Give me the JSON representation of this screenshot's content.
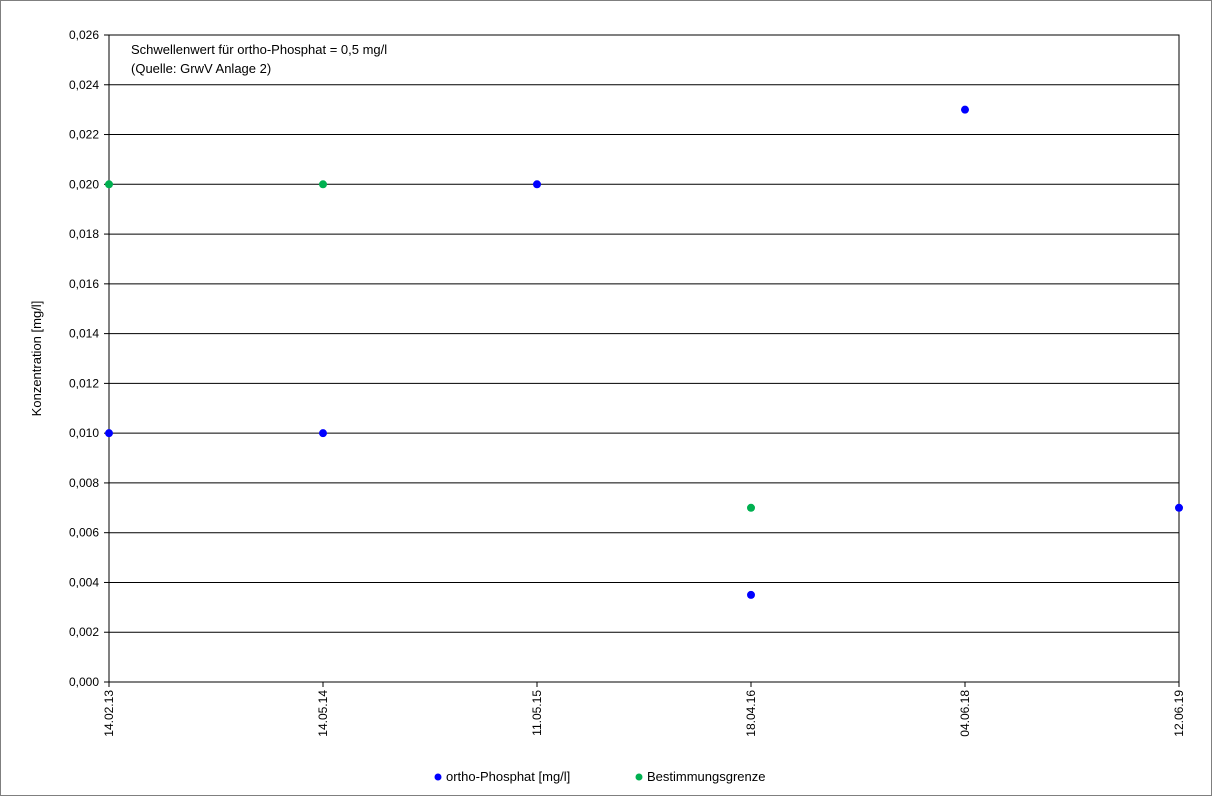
{
  "chart_data": {
    "type": "scatter",
    "title": "",
    "xlabel": "",
    "ylabel": "Konzentration [mg/l]",
    "ylim": [
      0,
      0.026
    ],
    "y_ticks": [
      "0,000",
      "0,002",
      "0,004",
      "0,006",
      "0,008",
      "0,010",
      "0,012",
      "0,014",
      "0,016",
      "0,018",
      "0,020",
      "0,022",
      "0,024",
      "0,026"
    ],
    "y_tick_values": [
      0,
      0.002,
      0.004,
      0.006,
      0.008,
      0.01,
      0.012,
      0.014,
      0.016,
      0.018,
      0.02,
      0.022,
      0.024,
      0.026
    ],
    "categories": [
      "14.02.13",
      "14.05.14",
      "11.05.15",
      "18.04.16",
      "04.06.18",
      "12.06.19"
    ],
    "grid": true,
    "legend_position": "bottom",
    "annotation": [
      "Schwellenwert für ortho-Phosphat = 0,5 mg/l",
      "(Quelle: GrwV Anlage 2)"
    ],
    "series": [
      {
        "name": "ortho-Phosphat [mg/l]",
        "color": "#0000ff",
        "points": [
          {
            "x": "14.02.13",
            "y": 0.01
          },
          {
            "x": "14.05.14",
            "y": 0.01
          },
          {
            "x": "11.05.15",
            "y": 0.02
          },
          {
            "x": "18.04.16",
            "y": 0.0035
          },
          {
            "x": "04.06.18",
            "y": 0.023
          },
          {
            "x": "12.06.19",
            "y": 0.007
          }
        ]
      },
      {
        "name": "Bestimmungsgrenze",
        "color": "#00b050",
        "points": [
          {
            "x": "14.02.13",
            "y": 0.02
          },
          {
            "x": "14.05.14",
            "y": 0.02
          },
          {
            "x": "18.04.16",
            "y": 0.007
          }
        ]
      }
    ]
  }
}
